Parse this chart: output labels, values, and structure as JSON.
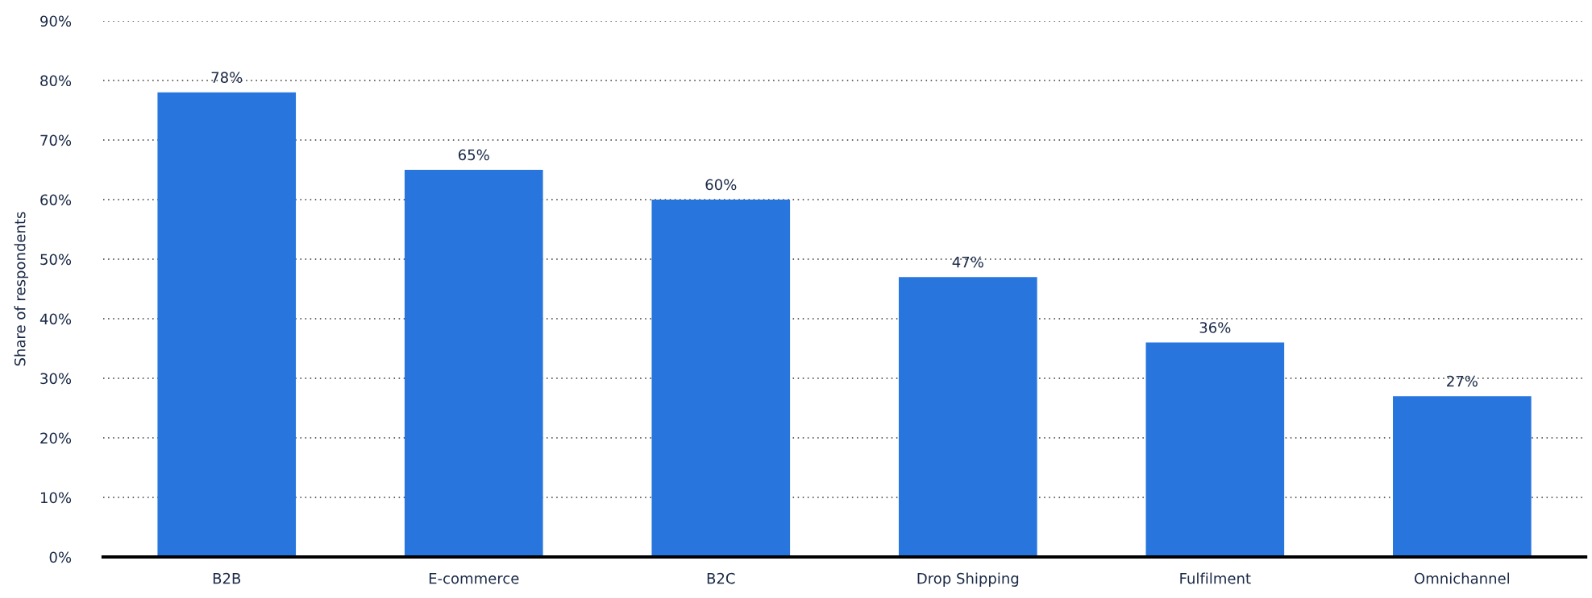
{
  "chart_data": {
    "type": "bar",
    "ylabel": "Share of respondents",
    "categories": [
      "B2B",
      "E-commerce",
      "B2C",
      "Drop Shipping",
      "Fulfilment",
      "Omnichannel"
    ],
    "values": [
      78,
      65,
      60,
      47,
      36,
      27
    ],
    "value_labels": [
      "78%",
      "65%",
      "60%",
      "47%",
      "36%",
      "27%"
    ],
    "color": "#2876dd",
    "ylim": [
      0,
      90
    ],
    "yticks": [
      {
        "value": 0,
        "label": "0%"
      },
      {
        "value": 10,
        "label": "10%"
      },
      {
        "value": 20,
        "label": "20%"
      },
      {
        "value": 30,
        "label": "30%"
      },
      {
        "value": 40,
        "label": "40%"
      },
      {
        "value": 50,
        "label": "50%"
      },
      {
        "value": 60,
        "label": "60%"
      },
      {
        "value": 70,
        "label": "70%"
      },
      {
        "value": 80,
        "label": "80%"
      },
      {
        "value": 90,
        "label": "90%"
      }
    ],
    "grid": "y",
    "legend": false
  }
}
